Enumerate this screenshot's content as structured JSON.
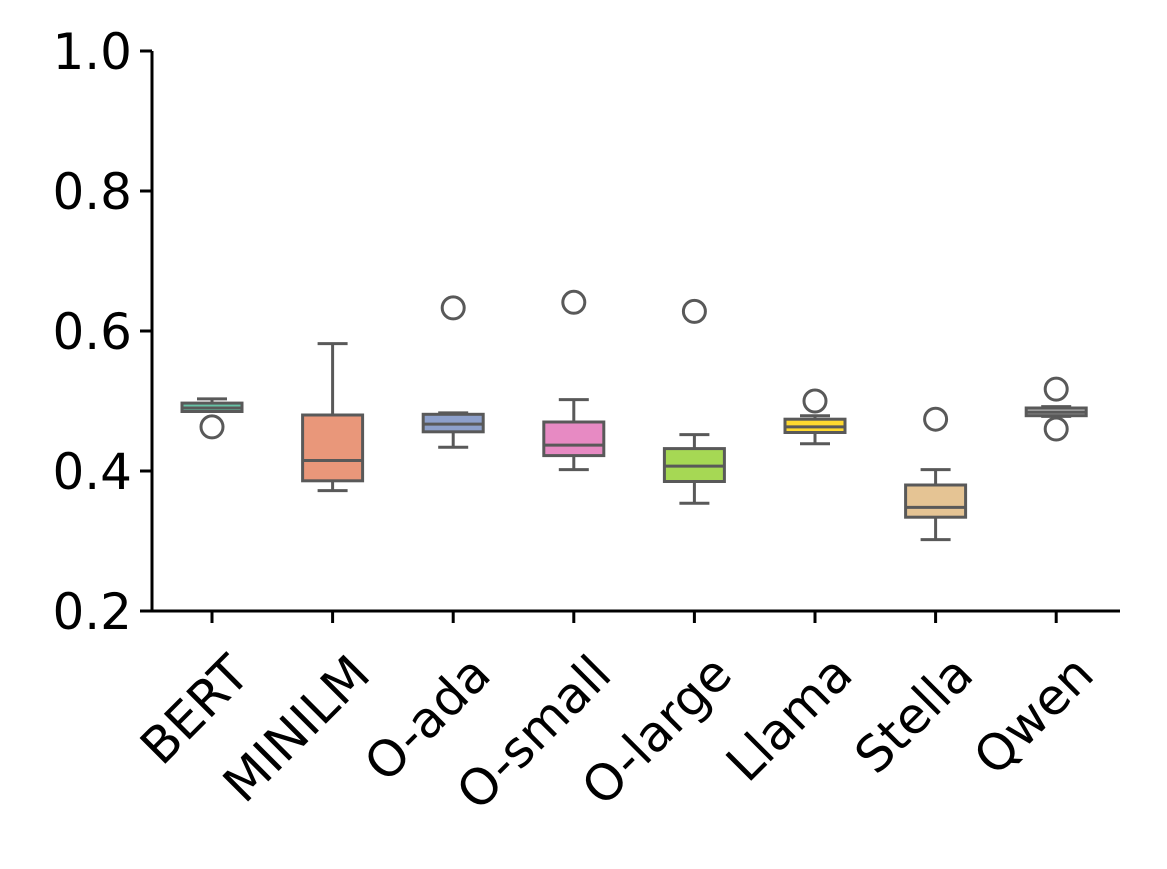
{
  "chart_data": {
    "type": "box",
    "title": "",
    "xlabel": "",
    "ylabel": "",
    "ylim": [
      0.2,
      1.0
    ],
    "yticks": [
      "0.2",
      "0.4",
      "0.6",
      "0.8",
      "1.0"
    ],
    "grid": false,
    "categories": [
      "BERT",
      "MINILM",
      "O-ada",
      "O-small",
      "O-large",
      "Llama",
      "Stella",
      "Qwen"
    ],
    "boxes": [
      {
        "category": "BERT",
        "whisker_low": 0.485,
        "q1": 0.485,
        "median": 0.49,
        "q3": 0.497,
        "whisker_high": 0.503,
        "outliers": [
          0.463
        ],
        "color": "#66c2a5"
      },
      {
        "category": "MINILM",
        "whisker_low": 0.372,
        "q1": 0.386,
        "median": 0.415,
        "q3": 0.48,
        "whisker_high": 0.582,
        "outliers": [],
        "color": "#e9977a"
      },
      {
        "category": "O-ada",
        "whisker_low": 0.434,
        "q1": 0.456,
        "median": 0.467,
        "q3": 0.481,
        "whisker_high": 0.483,
        "outliers": [
          0.633
        ],
        "color": "#8da0cb"
      },
      {
        "category": "O-small",
        "whisker_low": 0.402,
        "q1": 0.422,
        "median": 0.437,
        "q3": 0.47,
        "whisker_high": 0.502,
        "outliers": [
          0.641
        ],
        "color": "#e78ac3"
      },
      {
        "category": "O-large",
        "whisker_low": 0.354,
        "q1": 0.385,
        "median": 0.407,
        "q3": 0.432,
        "whisker_high": 0.452,
        "outliers": [
          0.628
        ],
        "color": "#a6d854"
      },
      {
        "category": "Llama",
        "whisker_low": 0.439,
        "q1": 0.455,
        "median": 0.463,
        "q3": 0.474,
        "whisker_high": 0.479,
        "outliers": [
          0.5
        ],
        "color": "#ffd92f"
      },
      {
        "category": "Stella",
        "whisker_low": 0.302,
        "q1": 0.334,
        "median": 0.348,
        "q3": 0.38,
        "whisker_high": 0.402,
        "outliers": [
          0.474
        ],
        "color": "#e5c494"
      },
      {
        "category": "Qwen",
        "whisker_low": 0.478,
        "q1": 0.479,
        "median": 0.484,
        "q3": 0.49,
        "whisker_high": 0.492,
        "outliers": [
          0.517,
          0.46
        ],
        "color": "#b3b3b3"
      }
    ],
    "colors": {
      "edge": "#595959",
      "axis": "#000000"
    }
  }
}
